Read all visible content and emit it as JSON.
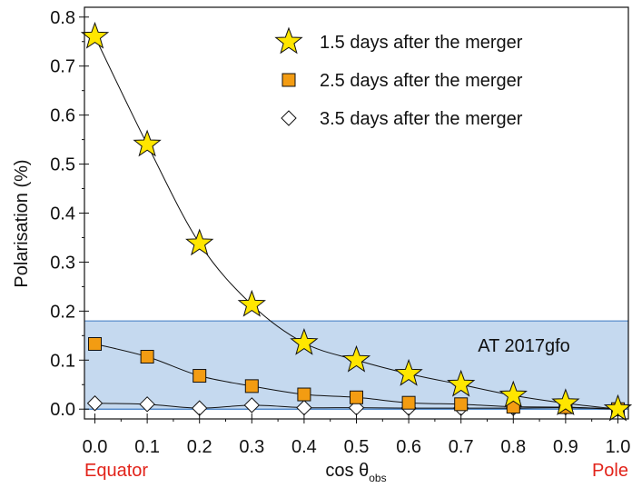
{
  "chart_data": {
    "type": "line",
    "xlabel": "cos θ",
    "xlabel_subscript": "obs",
    "ylabel": "Polarisation (%)",
    "xlim": [
      -0.02,
      1.02
    ],
    "ylim": [
      -0.02,
      0.82
    ],
    "x_ticks": [
      "0.0",
      "0.1",
      "0.2",
      "0.3",
      "0.4",
      "0.5",
      "0.6",
      "0.7",
      "0.8",
      "0.9",
      "1.0"
    ],
    "y_ticks": [
      "0.0",
      "0.1",
      "0.2",
      "0.3",
      "0.4",
      "0.5",
      "0.6",
      "0.7",
      "0.8"
    ],
    "x_end_labels": {
      "left": "Equator",
      "right": "Pole",
      "color": "#e2231a"
    },
    "band": {
      "label": "AT 2017gfo",
      "y_min": 0.0,
      "y_max": 0.18,
      "fill": "#c5d9ef",
      "edge": "#3a78c2"
    },
    "legend_position": "top-right",
    "grid": false,
    "x": [
      0.0,
      0.1,
      0.2,
      0.3,
      0.4,
      0.5,
      0.6,
      0.7,
      0.8,
      0.9,
      1.0
    ],
    "series": [
      {
        "name": "1.5 days after the merger",
        "marker": "star",
        "color": "#ffe600",
        "values": [
          0.76,
          0.54,
          0.338,
          0.213,
          0.135,
          0.1,
          0.072,
          0.05,
          0.028,
          0.012,
          0.0
        ]
      },
      {
        "name": "2.5 days after the merger",
        "marker": "square",
        "color": "#f39c12",
        "values": [
          0.133,
          0.107,
          0.068,
          0.047,
          0.03,
          0.024,
          0.013,
          0.01,
          0.005,
          0.004,
          0.0
        ]
      },
      {
        "name": "3.5 days after the merger",
        "marker": "diamond",
        "color": "#ffffff",
        "values": [
          0.012,
          0.01,
          0.002,
          0.008,
          0.003,
          0.003,
          0.002,
          0.002,
          0.002,
          0.003,
          0.0
        ]
      }
    ]
  }
}
